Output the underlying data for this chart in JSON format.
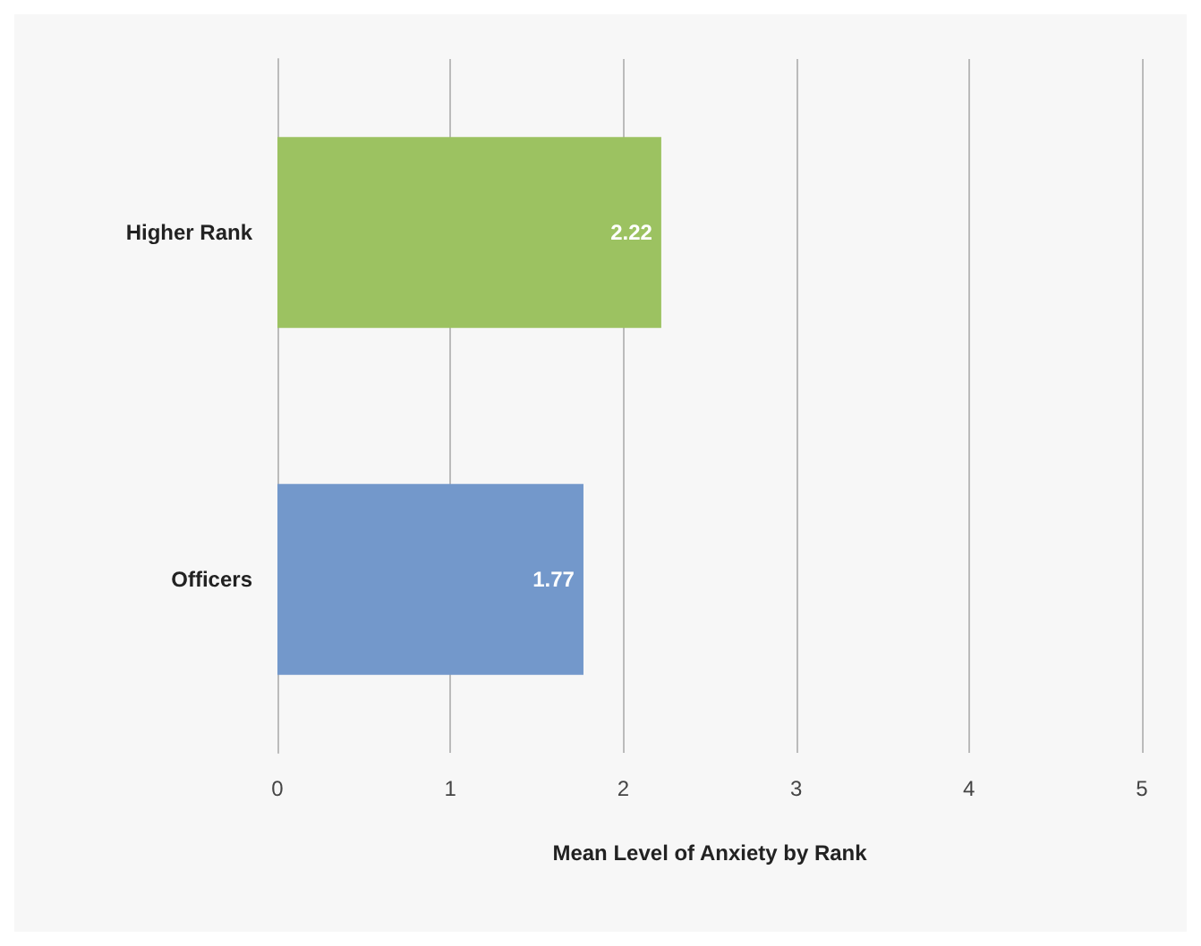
{
  "chart_data": {
    "type": "bar",
    "orientation": "horizontal",
    "categories": [
      "Higher Rank",
      "Officers"
    ],
    "values": [
      2.22,
      1.77
    ],
    "colors": [
      "#9cc261",
      "#7398cb"
    ],
    "xlabel": "Mean Level of Anxiety by Rank",
    "xlim": [
      0,
      5
    ],
    "xticks": [
      0,
      1,
      2,
      3,
      4,
      5
    ],
    "grid": "x",
    "data_labels": true
  }
}
